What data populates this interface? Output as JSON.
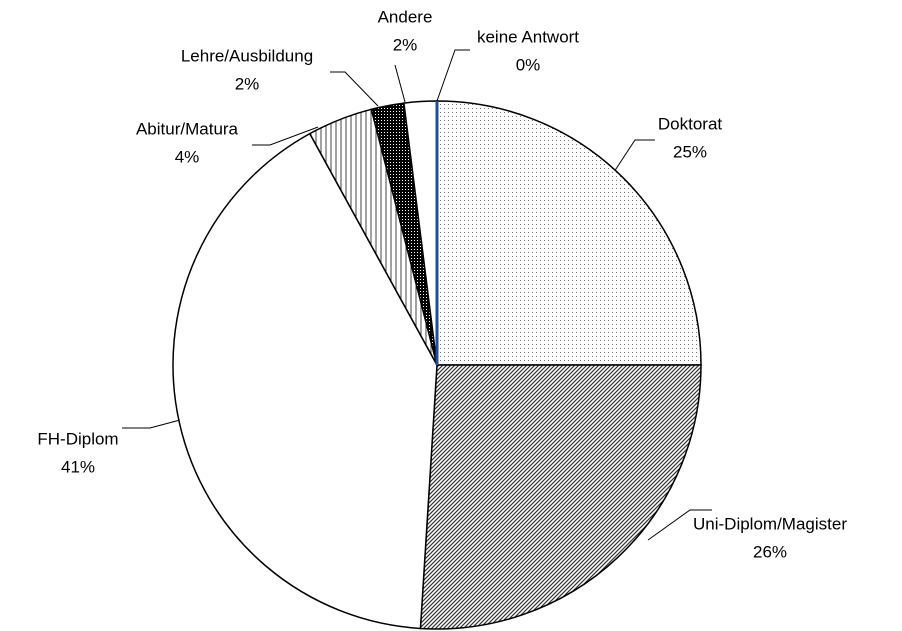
{
  "chart_data": {
    "type": "pie",
    "categories": [
      "Doktorat",
      "Uni-Diplom/Magister",
      "FH-Diplom",
      "Abitur/Matura",
      "Lehre/Ausbildung",
      "Andere",
      "keine Antwort"
    ],
    "values": [
      25,
      26,
      41,
      4,
      2,
      2,
      0
    ],
    "value_labels": [
      "25%",
      "26%",
      "41%",
      "4%",
      "2%",
      "2%",
      "0%"
    ],
    "colors": [
      "#f2f2f2",
      "#7f7f7f",
      "#ffffff",
      "#bfbfbf",
      "#404040",
      "#ffffff",
      "#1f4e9a"
    ]
  }
}
